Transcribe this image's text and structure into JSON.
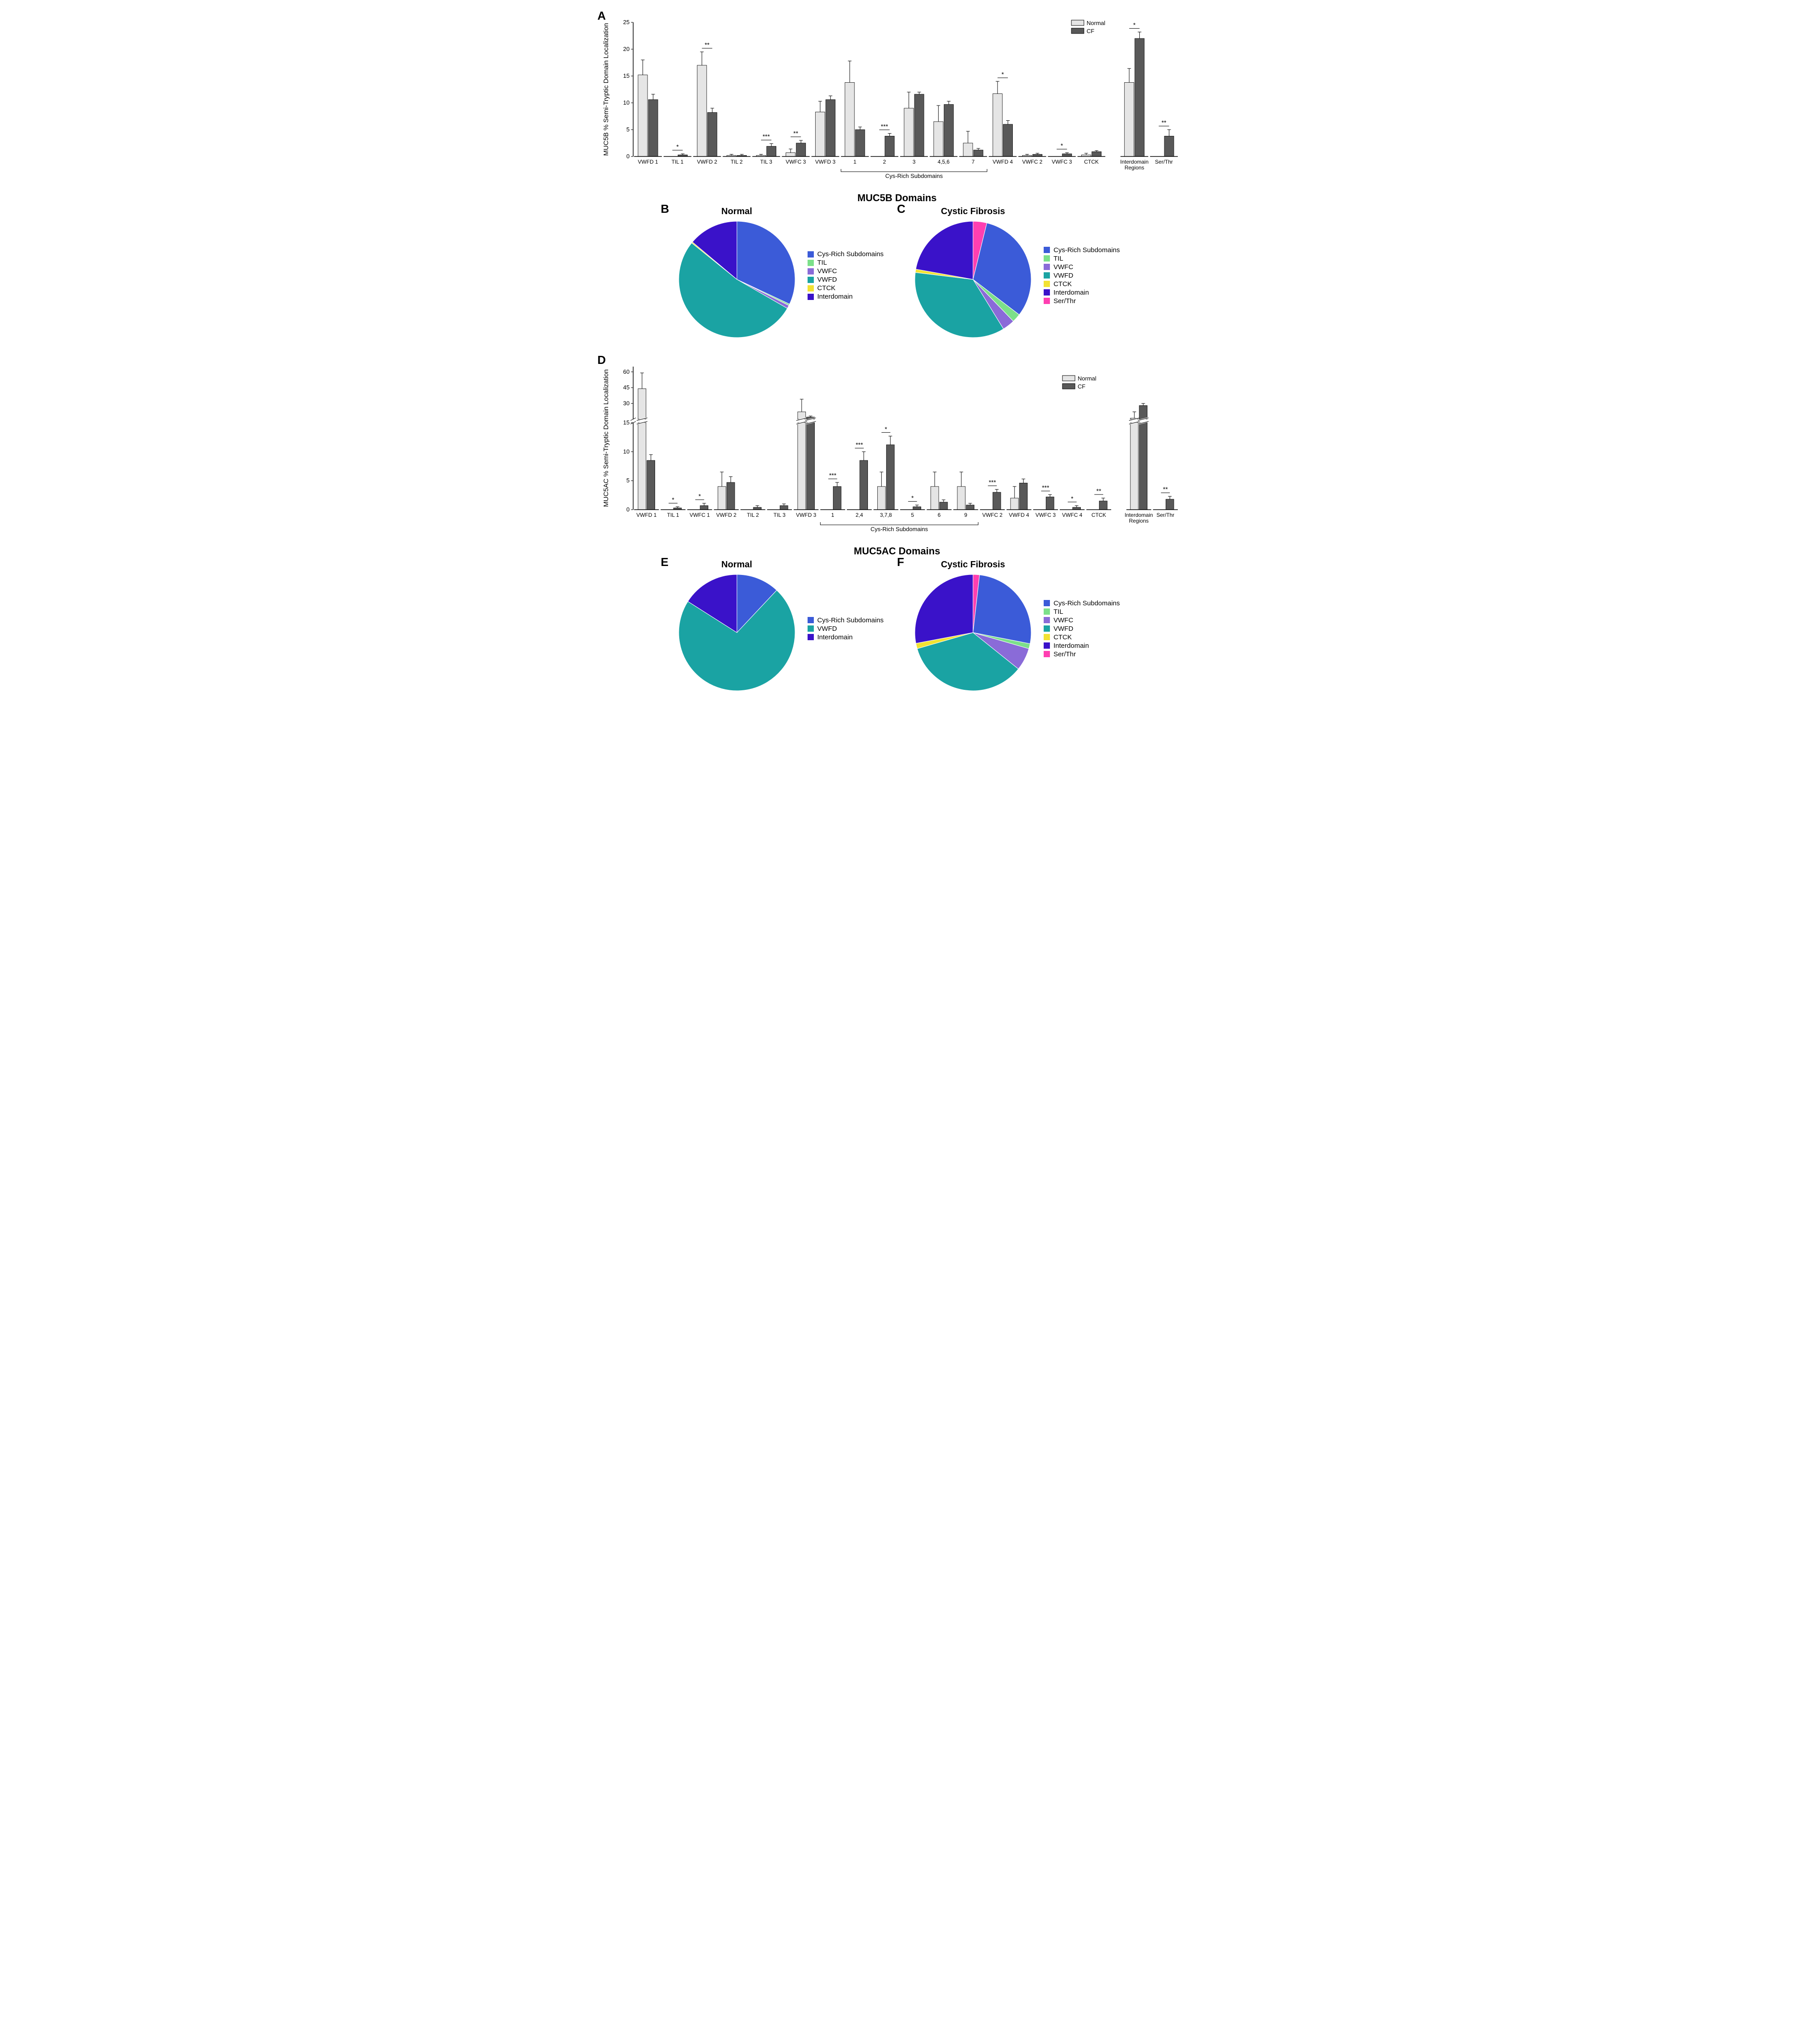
{
  "colors": {
    "normal_bar": "#e5e5e5",
    "cf_bar": "#595959",
    "cys_rich": "#3b5bd8",
    "til": "#7ce08a",
    "vwfc": "#8a6bd8",
    "vwfd": "#1aa3a3",
    "ctck": "#f2e233",
    "interdomain": "#3a12c9",
    "ser_thr": "#ff3fb1",
    "axis": "#000000",
    "bg": "#ffffff"
  },
  "panelA": {
    "label": "A",
    "ylabel": "MUC5B % Semi-Tryptic Domain Localization",
    "ylim": [
      0,
      25
    ],
    "ytick_step": 5,
    "legend": [
      {
        "label": "Normal",
        "key": "normal_bar"
      },
      {
        "label": "CF",
        "key": "cf_bar"
      }
    ],
    "bracket": {
      "label": "Cys-Rich Subdomains",
      "from": 7,
      "to": 11
    },
    "groups": [
      {
        "label": "VWFD 1",
        "normal": 15.2,
        "normal_err": 2.8,
        "cf": 10.6,
        "cf_err": 1.0,
        "sig": ""
      },
      {
        "label": "TIL 1",
        "normal": 0,
        "normal_err": 0,
        "cf": 0.3,
        "cf_err": 0.2,
        "sig": "*"
      },
      {
        "label": "VWFD 2",
        "normal": 17.0,
        "normal_err": 2.5,
        "cf": 8.2,
        "cf_err": 0.8,
        "sig": "**"
      },
      {
        "label": "TIL 2",
        "normal": 0.2,
        "normal_err": 0.2,
        "cf": 0.2,
        "cf_err": 0.2,
        "sig": ""
      },
      {
        "label": "TIL 3",
        "normal": 0.2,
        "normal_err": 0.2,
        "cf": 1.9,
        "cf_err": 0.5,
        "sig": "***"
      },
      {
        "label": "VWFC 3",
        "normal": 0.7,
        "normal_err": 0.7,
        "cf": 2.5,
        "cf_err": 0.5,
        "sig": "**"
      },
      {
        "label": "VWFD 3",
        "normal": 8.3,
        "normal_err": 2.0,
        "cf": 10.6,
        "cf_err": 0.7,
        "sig": ""
      },
      {
        "label": "1",
        "normal": 13.8,
        "normal_err": 4.0,
        "cf": 5.0,
        "cf_err": 0.5,
        "sig": ""
      },
      {
        "label": "2",
        "normal": 0,
        "normal_err": 0,
        "cf": 3.8,
        "cf_err": 0.5,
        "sig": "***"
      },
      {
        "label": "3",
        "normal": 9.0,
        "normal_err": 3.0,
        "cf": 11.6,
        "cf_err": 0.4,
        "sig": ""
      },
      {
        "label": "4,5,6",
        "normal": 6.5,
        "normal_err": 3.0,
        "cf": 9.7,
        "cf_err": 0.6,
        "sig": ""
      },
      {
        "label": "7",
        "normal": 2.5,
        "normal_err": 2.2,
        "cf": 1.2,
        "cf_err": 0.3,
        "sig": ""
      },
      {
        "label": "VWFD 4",
        "normal": 11.7,
        "normal_err": 2.3,
        "cf": 6.0,
        "cf_err": 0.7,
        "sig": "*"
      },
      {
        "label": "VWFC 2",
        "normal": 0.2,
        "normal_err": 0.2,
        "cf": 0.4,
        "cf_err": 0.2,
        "sig": ""
      },
      {
        "label": "VWFC 3",
        "normal": 0,
        "normal_err": 0,
        "cf": 0.5,
        "cf_err": 0.2,
        "sig": "*"
      },
      {
        "label": "CTCK",
        "normal": 0.3,
        "normal_err": 0.3,
        "cf": 0.9,
        "cf_err": 0.2,
        "sig": ""
      },
      {
        "label": "Interdomain\nRegions",
        "normal": 13.8,
        "normal_err": 2.6,
        "cf": 22.0,
        "cf_err": 1.2,
        "sig": "*"
      },
      {
        "label": "Ser/Thr",
        "normal": 0,
        "normal_err": 0,
        "cf": 3.8,
        "cf_err": 1.2,
        "sig": "**"
      }
    ]
  },
  "section1_title": "MUC5B Domains",
  "panelB": {
    "label": "B",
    "title": "Normal",
    "slices": [
      {
        "key": "interdomain",
        "label": "Interdomain",
        "value": 13.8
      },
      {
        "key": "cys_rich",
        "label": "Cys-Rich Subdomains",
        "value": 31.8
      },
      {
        "key": "til",
        "label": "TIL",
        "value": 0.4
      },
      {
        "key": "vwfc",
        "label": "VWFC",
        "value": 0.9
      },
      {
        "key": "vwfd",
        "label": "VWFD",
        "value": 52.2
      },
      {
        "key": "ctck",
        "label": "CTCK",
        "value": 0.3
      }
    ]
  },
  "panelC": {
    "label": "C",
    "title": "Cystic Fibrosis",
    "slices": [
      {
        "key": "interdomain",
        "label": "Interdomain",
        "value": 22.0
      },
      {
        "key": "ser_thr",
        "label": "Ser/Thr",
        "value": 3.8
      },
      {
        "key": "cys_rich",
        "label": "Cys-Rich Subdomains",
        "value": 31.3
      },
      {
        "key": "til",
        "label": "TIL",
        "value": 2.4
      },
      {
        "key": "vwfc",
        "label": "VWFC",
        "value": 3.4
      },
      {
        "key": "vwfd",
        "label": "VWFD",
        "value": 35.4
      },
      {
        "key": "ctck",
        "label": "CTCK",
        "value": 0.9
      }
    ]
  },
  "panelD": {
    "label": "D",
    "ylabel": "MUC5AC % Semi-Tryptic Domain Localization",
    "break": {
      "low_max": 15,
      "high_min": 15,
      "high_max": 65
    },
    "yticks_low": [
      0,
      5,
      10,
      15
    ],
    "yticks_high": [
      30,
      45,
      60
    ],
    "legend": [
      {
        "label": "Normal",
        "key": "normal_bar"
      },
      {
        "label": "CF",
        "key": "cf_bar"
      }
    ],
    "bracket": {
      "label": "Cys-Rich Subdomains",
      "from": 7,
      "to": 12
    },
    "groups": [
      {
        "label": "VWFD 1",
        "normal": 44,
        "normal_err": 15,
        "cf": 8.5,
        "cf_err": 1.0,
        "sig": ""
      },
      {
        "label": "TIL 1",
        "normal": 0,
        "normal_err": 0,
        "cf": 0.3,
        "cf_err": 0.2,
        "sig": "*"
      },
      {
        "label": "VWFC 1",
        "normal": 0,
        "normal_err": 0,
        "cf": 0.7,
        "cf_err": 0.4,
        "sig": "*"
      },
      {
        "label": "VWFD 2",
        "normal": 4,
        "normal_err": 2.5,
        "cf": 4.7,
        "cf_err": 1.0,
        "sig": ""
      },
      {
        "label": "TIL 2",
        "normal": 0,
        "normal_err": 0,
        "cf": 0.4,
        "cf_err": 0.3,
        "sig": ""
      },
      {
        "label": "TIL 3",
        "normal": 0,
        "normal_err": 0,
        "cf": 0.7,
        "cf_err": 0.3,
        "sig": ""
      },
      {
        "label": "VWFD 3",
        "normal": 22,
        "normal_err": 12,
        "cf": 17,
        "cf_err": 1.0,
        "sig": ""
      },
      {
        "label": "1",
        "normal": 0,
        "normal_err": 0,
        "cf": 4.0,
        "cf_err": 0.7,
        "sig": "***"
      },
      {
        "label": "2,4",
        "normal": 0,
        "normal_err": 0,
        "cf": 8.5,
        "cf_err": 1.5,
        "sig": "***"
      },
      {
        "label": "3,7,8",
        "normal": 4,
        "normal_err": 2.5,
        "cf": 11.2,
        "cf_err": 1.5,
        "sig": "*"
      },
      {
        "label": "5",
        "normal": 0,
        "normal_err": 0,
        "cf": 0.5,
        "cf_err": 0.3,
        "sig": "*"
      },
      {
        "label": "6",
        "normal": 4,
        "normal_err": 2.5,
        "cf": 1.3,
        "cf_err": 0.4,
        "sig": ""
      },
      {
        "label": "9",
        "normal": 4,
        "normal_err": 2.5,
        "cf": 0.8,
        "cf_err": 0.3,
        "sig": ""
      },
      {
        "label": "VWFC 2",
        "normal": 0,
        "normal_err": 0,
        "cf": 3.0,
        "cf_err": 0.5,
        "sig": "***"
      },
      {
        "label": "VWFD 4",
        "normal": 2,
        "normal_err": 2,
        "cf": 4.6,
        "cf_err": 0.7,
        "sig": ""
      },
      {
        "label": "VWFC 3",
        "normal": 0,
        "normal_err": 0,
        "cf": 2.2,
        "cf_err": 0.4,
        "sig": "***"
      },
      {
        "label": "VWFC 4",
        "normal": 0,
        "normal_err": 0,
        "cf": 0.4,
        "cf_err": 0.3,
        "sig": "*"
      },
      {
        "label": "CTCK",
        "normal": 0,
        "normal_err": 0,
        "cf": 1.5,
        "cf_err": 0.5,
        "sig": "**"
      },
      {
        "label": "Interdomain\nRegions",
        "normal": 16,
        "normal_err": 6,
        "cf": 28,
        "cf_err": 2,
        "sig": ""
      },
      {
        "label": "Ser/Thr",
        "normal": 0,
        "normal_err": 0,
        "cf": 1.8,
        "cf_err": 0.5,
        "sig": "**"
      }
    ]
  },
  "section2_title": "MUC5AC Domains",
  "panelE": {
    "label": "E",
    "title": "Normal",
    "slices": [
      {
        "key": "interdomain",
        "label": "Interdomain",
        "value": 16
      },
      {
        "key": "cys_rich",
        "label": "Cys-Rich Subdomains",
        "value": 12
      },
      {
        "key": "vwfd",
        "label": "VWFD",
        "value": 72
      }
    ]
  },
  "panelF": {
    "label": "F",
    "title": "Cystic Fibrosis",
    "slices": [
      {
        "key": "interdomain",
        "label": "Interdomain",
        "value": 28
      },
      {
        "key": "ser_thr",
        "label": "Ser/Thr",
        "value": 1.8
      },
      {
        "key": "cys_rich",
        "label": "Cys-Rich Subdomains",
        "value": 26.3
      },
      {
        "key": "til",
        "label": "TIL",
        "value": 1.4
      },
      {
        "key": "vwfc",
        "label": "VWFC",
        "value": 6.3
      },
      {
        "key": "vwfd",
        "label": "VWFD",
        "value": 34.8
      },
      {
        "key": "ctck",
        "label": "CTCK",
        "value": 1.5
      }
    ]
  },
  "legend_order_pie": [
    "cys_rich",
    "til",
    "vwfc",
    "vwfd",
    "ctck",
    "interdomain",
    "ser_thr"
  ]
}
